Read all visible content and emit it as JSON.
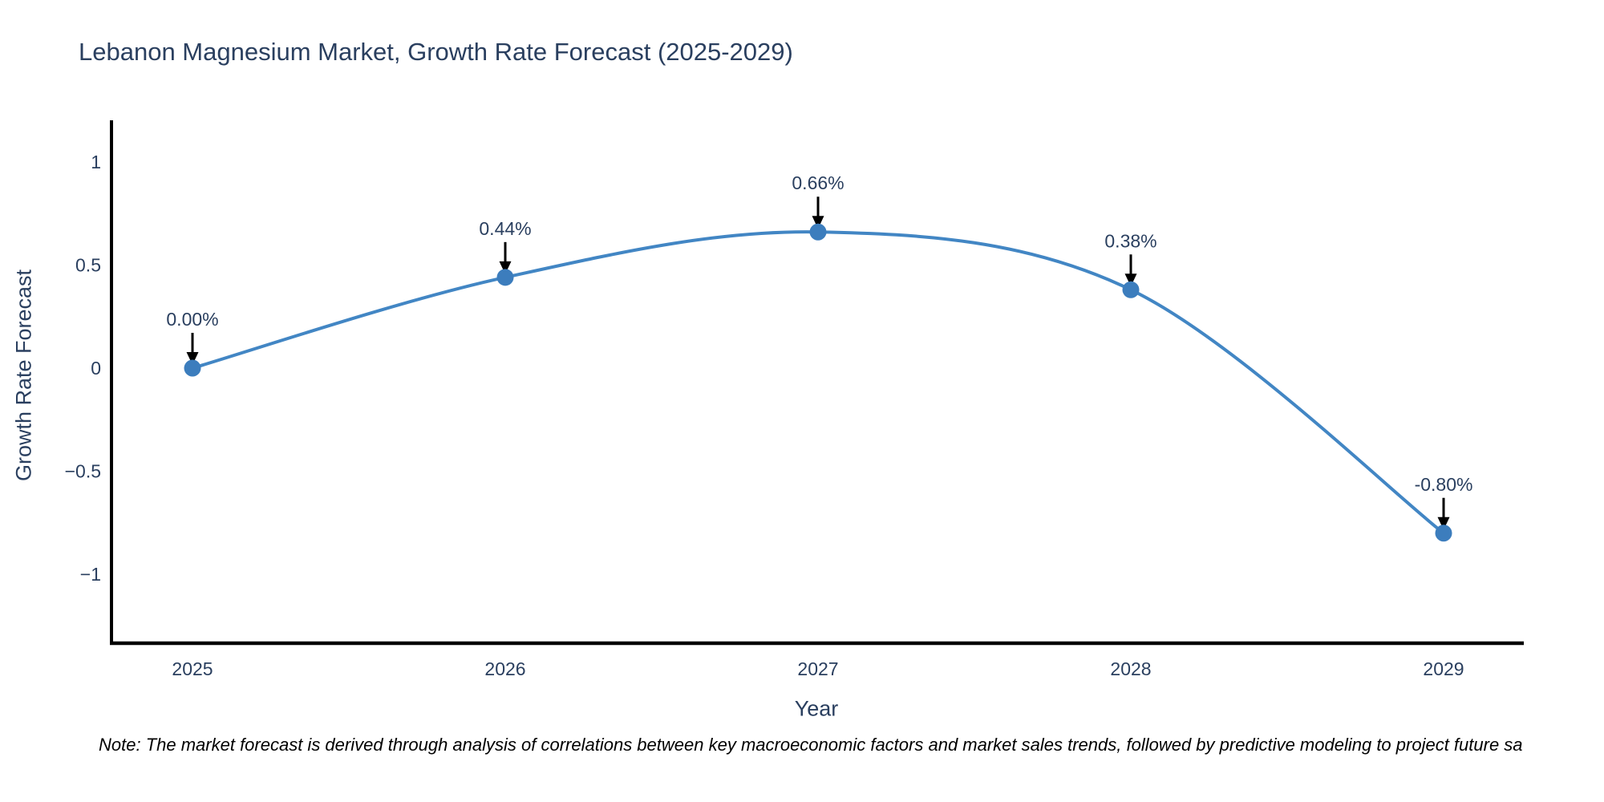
{
  "title": "Lebanon Magnesium Market, Growth Rate Forecast (2025-2029)",
  "note": "Note: The market forecast is derived through analysis of correlations between key macroeconomic factors and market sales trends, followed by predictive modeling to project future sa",
  "chart_data": {
    "type": "line",
    "line_shape": "spline",
    "title": "Lebanon Magnesium Market, Growth Rate Forecast (2025-2029)",
    "xlabel": "Year",
    "ylabel": "Growth Rate Forecast",
    "x": [
      2025,
      2026,
      2027,
      2028,
      2029
    ],
    "x_tick_labels": [
      "2025",
      "2026",
      "2027",
      "2028",
      "2029"
    ],
    "series": [
      {
        "name": "Growth Rate Forecast",
        "values": [
          0.0,
          0.44,
          0.66,
          0.38,
          -0.8
        ]
      }
    ],
    "point_labels": [
      "0.00%",
      "0.44%",
      "0.66%",
      "0.38%",
      "-0.80%"
    ],
    "y_ticks": {
      "values": [
        1,
        0.5,
        0,
        -0.5,
        -1
      ],
      "labels": [
        "1",
        "0.5",
        "0",
        "−0.5",
        "−1"
      ]
    },
    "ylim": [
      -1.34,
      1.2
    ],
    "xlim": [
      2024.74,
      2029.28
    ],
    "grid": false,
    "legend": "none",
    "annotations_have_arrows": true,
    "colors": {
      "line": "#4286c4",
      "marker": "#3c7dbd",
      "axis": "#000000",
      "arrow": "#000000",
      "tick_text": "#2a3f5f",
      "title_text": "#2a3f5f",
      "note_text": "#000000",
      "background": "#ffffff"
    }
  }
}
